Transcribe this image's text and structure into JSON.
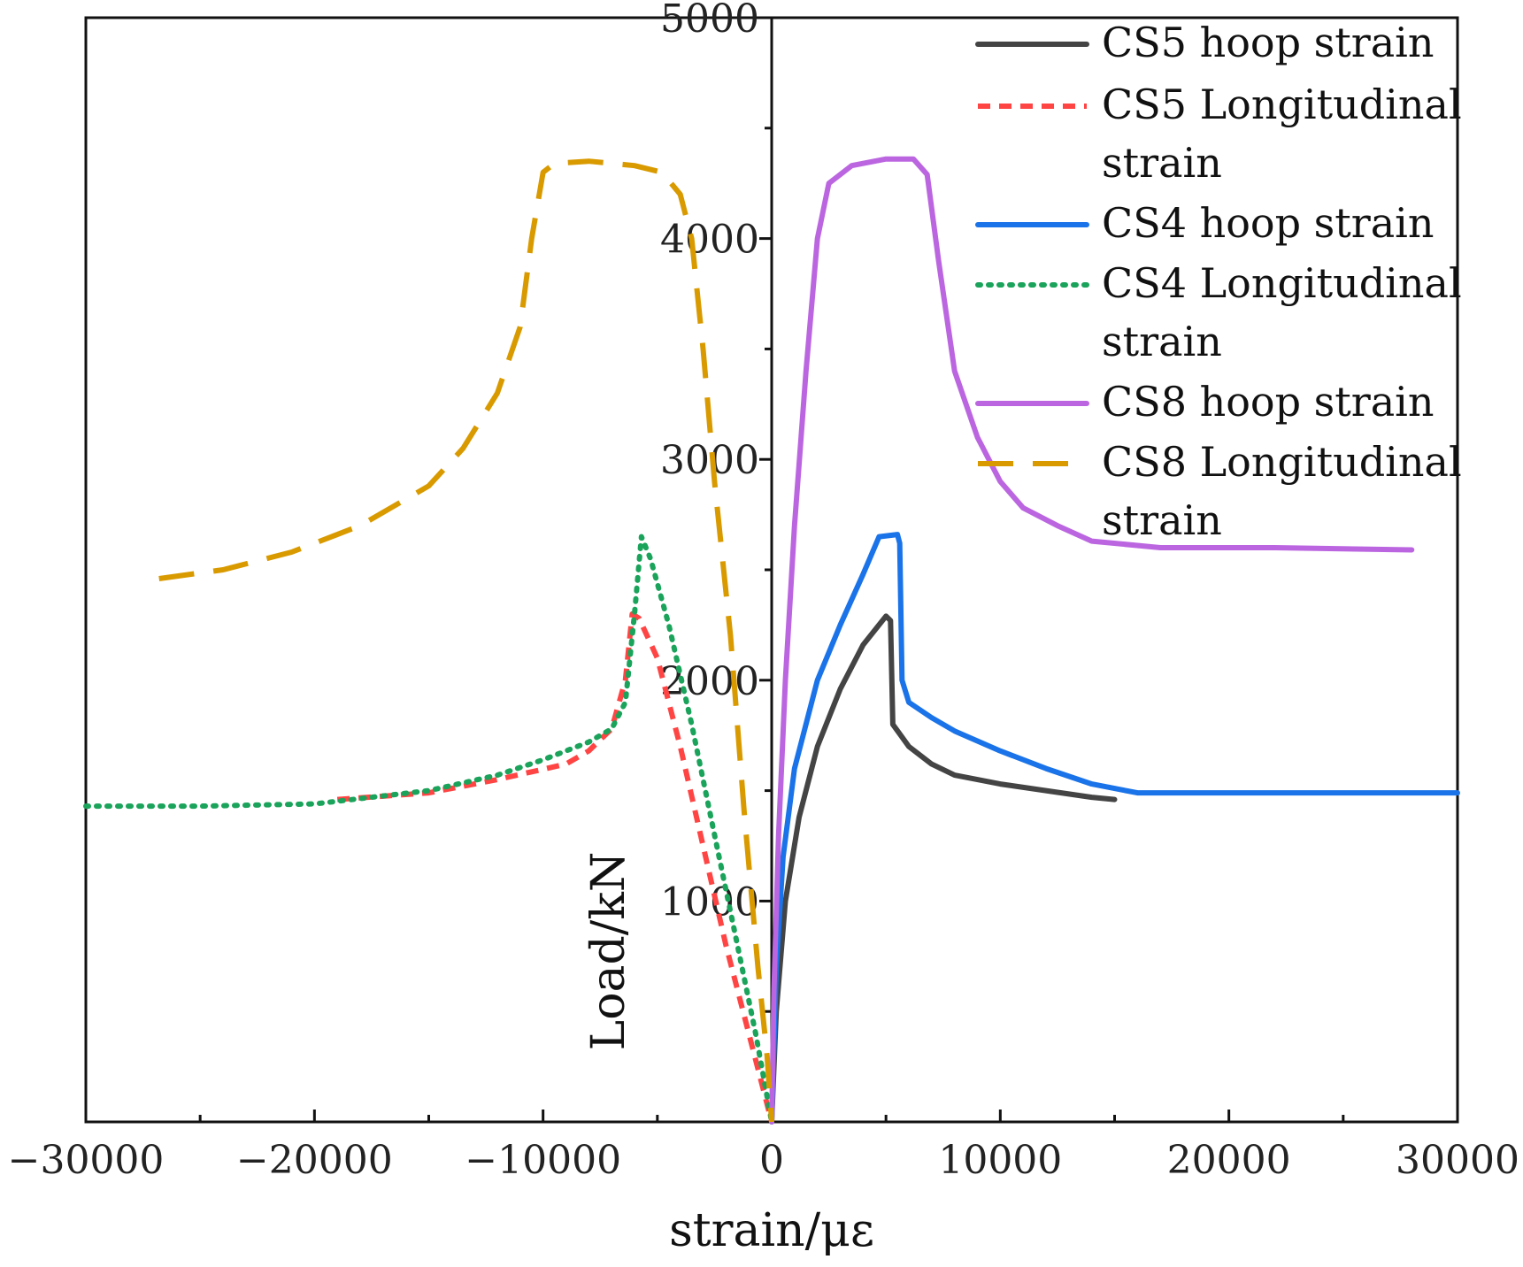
{
  "chart_data": {
    "type": "line",
    "title": "",
    "xlabel": "strain/με",
    "ylabel": "Load/kN",
    "xlim": [
      -30000,
      30000
    ],
    "ylim": [
      0,
      5000
    ],
    "xticks": [
      -30000,
      -20000,
      -10000,
      0,
      10000,
      20000,
      30000
    ],
    "xtick_labels": [
      "−30000",
      "−20000",
      "−10000",
      "0",
      "10000",
      "20000",
      "30000"
    ],
    "yticks": [
      1000,
      2000,
      3000,
      4000,
      5000
    ],
    "ytick_labels": [
      "1000",
      "2000",
      "3000",
      "4000",
      "5000"
    ],
    "grid": false,
    "legend_position": "top-right",
    "series": [
      {
        "name": "CS5 hoop strain",
        "color": "#444444",
        "dash": "solid",
        "points": [
          [
            0,
            0
          ],
          [
            200,
            500
          ],
          [
            600,
            1000
          ],
          [
            1200,
            1380
          ],
          [
            2000,
            1700
          ],
          [
            3000,
            1960
          ],
          [
            4000,
            2160
          ],
          [
            5000,
            2290
          ],
          [
            5200,
            2270
          ],
          [
            5300,
            1800
          ],
          [
            6000,
            1700
          ],
          [
            7000,
            1620
          ],
          [
            8000,
            1570
          ],
          [
            10000,
            1530
          ],
          [
            12000,
            1500
          ],
          [
            14000,
            1470
          ],
          [
            15000,
            1460
          ]
        ]
      },
      {
        "name": "CS5 Longitudinal strain",
        "color": "#ff4444",
        "dash": "dashed",
        "points": [
          [
            -19000,
            1460
          ],
          [
            -15000,
            1490
          ],
          [
            -12000,
            1550
          ],
          [
            -9000,
            1620
          ],
          [
            -8000,
            1680
          ],
          [
            -7000,
            1780
          ],
          [
            -6400,
            2000
          ],
          [
            -6100,
            2300
          ],
          [
            -5800,
            2280
          ],
          [
            -5000,
            2100
          ],
          [
            -4000,
            1700
          ],
          [
            -3000,
            1250
          ],
          [
            -2000,
            800
          ],
          [
            -1000,
            400
          ],
          [
            0,
            0
          ]
        ]
      },
      {
        "name": "CS4 hoop strain",
        "color": "#1a73e8",
        "dash": "solid",
        "points": [
          [
            0,
            0
          ],
          [
            200,
            700
          ],
          [
            500,
            1200
          ],
          [
            1000,
            1600
          ],
          [
            2000,
            2000
          ],
          [
            3000,
            2250
          ],
          [
            4000,
            2480
          ],
          [
            4700,
            2650
          ],
          [
            5500,
            2660
          ],
          [
            5600,
            2620
          ],
          [
            5700,
            2000
          ],
          [
            6000,
            1900
          ],
          [
            7000,
            1830
          ],
          [
            8000,
            1770
          ],
          [
            10000,
            1680
          ],
          [
            12000,
            1600
          ],
          [
            14000,
            1530
          ],
          [
            16000,
            1490
          ],
          [
            18000,
            1490
          ],
          [
            22000,
            1490
          ],
          [
            26000,
            1490
          ],
          [
            30000,
            1490
          ]
        ]
      },
      {
        "name": "CS4 Longitudinal strain",
        "color": "#1aa35a",
        "dash": "dotted",
        "points": [
          [
            -30000,
            1430
          ],
          [
            -25000,
            1430
          ],
          [
            -20000,
            1440
          ],
          [
            -15000,
            1500
          ],
          [
            -12000,
            1570
          ],
          [
            -10000,
            1640
          ],
          [
            -8000,
            1720
          ],
          [
            -7000,
            1780
          ],
          [
            -6400,
            1900
          ],
          [
            -6000,
            2300
          ],
          [
            -5700,
            2650
          ],
          [
            -5300,
            2550
          ],
          [
            -4500,
            2250
          ],
          [
            -3500,
            1800
          ],
          [
            -2500,
            1300
          ],
          [
            -1500,
            800
          ],
          [
            -700,
            400
          ],
          [
            0,
            0
          ]
        ]
      },
      {
        "name": "CS8 hoop strain",
        "color": "#bb66e0",
        "dash": "solid",
        "points": [
          [
            0,
            0
          ],
          [
            100,
            600
          ],
          [
            300,
            1300
          ],
          [
            600,
            2000
          ],
          [
            1000,
            2700
          ],
          [
            1500,
            3400
          ],
          [
            2000,
            4000
          ],
          [
            2500,
            4250
          ],
          [
            3500,
            4330
          ],
          [
            5000,
            4360
          ],
          [
            6200,
            4360
          ],
          [
            6800,
            4290
          ],
          [
            7300,
            3900
          ],
          [
            8000,
            3400
          ],
          [
            9000,
            3100
          ],
          [
            10000,
            2900
          ],
          [
            11000,
            2780
          ],
          [
            12500,
            2700
          ],
          [
            14000,
            2630
          ],
          [
            17000,
            2600
          ],
          [
            22000,
            2600
          ],
          [
            28000,
            2590
          ]
        ]
      },
      {
        "name": "CS8 Longitudinal strain",
        "color": "#d99a00",
        "dash": "long-dash",
        "points": [
          [
            -26800,
            2460
          ],
          [
            -24000,
            2500
          ],
          [
            -21000,
            2580
          ],
          [
            -18000,
            2700
          ],
          [
            -15000,
            2880
          ],
          [
            -13500,
            3050
          ],
          [
            -12000,
            3300
          ],
          [
            -11000,
            3600
          ],
          [
            -10500,
            4000
          ],
          [
            -10000,
            4300
          ],
          [
            -9500,
            4340
          ],
          [
            -8000,
            4350
          ],
          [
            -6000,
            4330
          ],
          [
            -4800,
            4300
          ],
          [
            -4000,
            4200
          ],
          [
            -3500,
            4000
          ],
          [
            -3000,
            3500
          ],
          [
            -2500,
            2900
          ],
          [
            -1800,
            2200
          ],
          [
            -1200,
            1400
          ],
          [
            -600,
            700
          ],
          [
            -200,
            300
          ],
          [
            0,
            0
          ]
        ]
      }
    ]
  },
  "legend": [
    {
      "line1": "CS5 hoop strain",
      "line2": ""
    },
    {
      "line1": "CS5 Longitudinal",
      "line2": "strain"
    },
    {
      "line1": "CS4 hoop strain",
      "line2": ""
    },
    {
      "line1": "CS4 Longitudinal",
      "line2": "strain"
    },
    {
      "line1": "CS8 hoop strain",
      "line2": ""
    },
    {
      "line1": "CS8 Longitudinal",
      "line2": "strain"
    }
  ]
}
